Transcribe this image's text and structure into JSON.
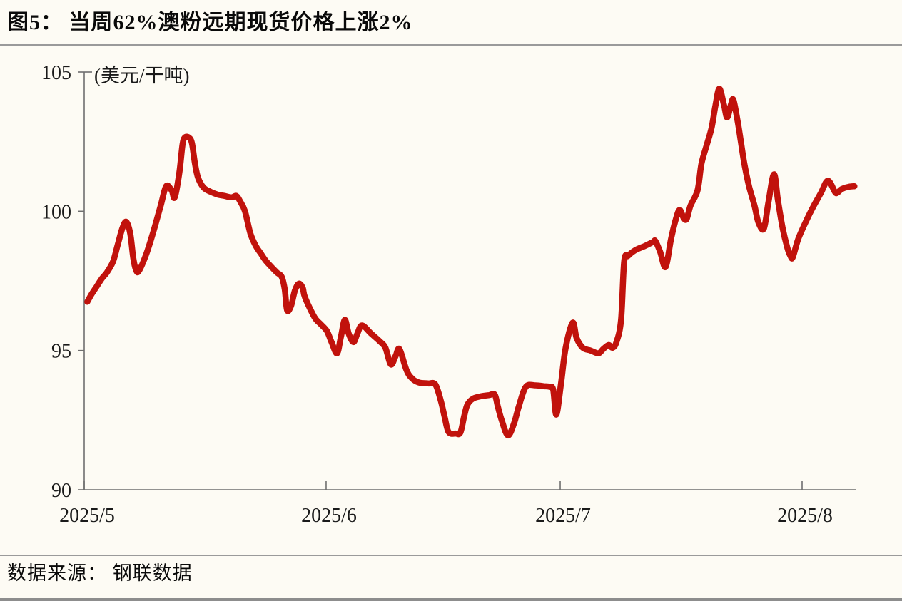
{
  "page": {
    "title": "图5： 当周62%澳粉远期现货价格上涨2%",
    "source": "数据来源： 钢联数据"
  },
  "chart_data": {
    "type": "line",
    "title": "当周62%澳粉远期现货价格上涨2%",
    "series_name": "62%澳粉远期现货价格",
    "ylabel": "(美元/干吨)",
    "line_color": "#c1120c",
    "axis_color": "#6f6f6f",
    "grid": false,
    "legend": "none",
    "x_axis": {
      "unit": "days from 2025-05-01",
      "min": 0,
      "max": 99,
      "ticks": [
        0,
        31,
        61,
        92
      ],
      "tick_labels": [
        "2025/5",
        "2025/6",
        "2025/7",
        "2025/8"
      ]
    },
    "y_axis": {
      "min": 90,
      "max": 105,
      "ticks": [
        90,
        95,
        100,
        105
      ],
      "tick_labels": [
        "90",
        "95",
        "100",
        "105"
      ]
    },
    "points": [
      [
        0.4,
        96.75
      ],
      [
        0.9,
        97.0
      ],
      [
        1.6,
        97.3
      ],
      [
        2.3,
        97.6
      ],
      [
        2.9,
        97.8
      ],
      [
        3.7,
        98.2
      ],
      [
        4.3,
        98.8
      ],
      [
        4.9,
        99.4
      ],
      [
        5.4,
        99.62
      ],
      [
        5.9,
        99.2
      ],
      [
        6.3,
        98.3
      ],
      [
        6.7,
        97.85
      ],
      [
        7.1,
        97.9
      ],
      [
        8.0,
        98.5
      ],
      [
        8.9,
        99.3
      ],
      [
        9.8,
        100.2
      ],
      [
        10.5,
        100.9
      ],
      [
        11.2,
        100.75
      ],
      [
        11.6,
        100.5
      ],
      [
        12.2,
        101.4
      ],
      [
        12.6,
        102.4
      ],
      [
        12.9,
        102.65
      ],
      [
        13.4,
        102.65
      ],
      [
        13.8,
        102.45
      ],
      [
        14.2,
        101.7
      ],
      [
        14.6,
        101.2
      ],
      [
        15.3,
        100.85
      ],
      [
        16.2,
        100.7
      ],
      [
        17.1,
        100.6
      ],
      [
        18.0,
        100.55
      ],
      [
        18.9,
        100.5
      ],
      [
        19.5,
        100.55
      ],
      [
        20.0,
        100.35
      ],
      [
        20.6,
        100.0
      ],
      [
        21.3,
        99.2
      ],
      [
        22.0,
        98.75
      ],
      [
        22.6,
        98.5
      ],
      [
        23.2,
        98.25
      ],
      [
        24.0,
        98.0
      ],
      [
        24.7,
        97.8
      ],
      [
        25.3,
        97.65
      ],
      [
        25.7,
        97.2
      ],
      [
        26.0,
        96.45
      ],
      [
        26.5,
        96.6
      ],
      [
        27.0,
        97.15
      ],
      [
        27.5,
        97.4
      ],
      [
        28.0,
        97.25
      ],
      [
        28.3,
        96.9
      ],
      [
        29.5,
        96.2
      ],
      [
        30.3,
        95.95
      ],
      [
        31.1,
        95.7
      ],
      [
        31.7,
        95.3
      ],
      [
        32.4,
        94.9
      ],
      [
        32.9,
        95.5
      ],
      [
        33.4,
        96.1
      ],
      [
        33.9,
        95.6
      ],
      [
        34.5,
        95.3
      ],
      [
        35.0,
        95.6
      ],
      [
        35.6,
        95.9
      ],
      [
        36.8,
        95.6
      ],
      [
        38.0,
        95.3
      ],
      [
        38.6,
        95.1
      ],
      [
        39.3,
        94.5
      ],
      [
        39.9,
        94.8
      ],
      [
        40.4,
        95.05
      ],
      [
        41.3,
        94.3
      ],
      [
        42.0,
        94.0
      ],
      [
        42.9,
        93.85
      ],
      [
        44.1,
        93.82
      ],
      [
        45.0,
        93.78
      ],
      [
        45.7,
        93.2
      ],
      [
        46.2,
        92.6
      ],
      [
        46.7,
        92.07
      ],
      [
        47.6,
        92.02
      ],
      [
        48.2,
        92.05
      ],
      [
        48.7,
        92.65
      ],
      [
        49.1,
        93.05
      ],
      [
        49.8,
        93.27
      ],
      [
        50.7,
        93.35
      ],
      [
        51.9,
        93.4
      ],
      [
        52.6,
        93.42
      ],
      [
        53.0,
        93.0
      ],
      [
        53.5,
        92.5
      ],
      [
        54.3,
        91.95
      ],
      [
        55.1,
        92.4
      ],
      [
        55.7,
        93.0
      ],
      [
        56.6,
        93.7
      ],
      [
        57.8,
        93.75
      ],
      [
        58.9,
        93.72
      ],
      [
        59.6,
        93.7
      ],
      [
        60.1,
        93.6
      ],
      [
        60.5,
        92.7
      ],
      [
        61.1,
        93.8
      ],
      [
        61.7,
        95.1
      ],
      [
        62.6,
        96.0
      ],
      [
        63.1,
        95.45
      ],
      [
        63.9,
        95.1
      ],
      [
        64.9,
        95.0
      ],
      [
        65.9,
        94.9
      ],
      [
        66.5,
        95.05
      ],
      [
        67.2,
        95.2
      ],
      [
        67.7,
        95.1
      ],
      [
        68.2,
        95.3
      ],
      [
        68.8,
        96.1
      ],
      [
        69.2,
        98.2
      ],
      [
        69.7,
        98.4
      ],
      [
        70.6,
        98.6
      ],
      [
        71.8,
        98.75
      ],
      [
        72.9,
        98.9
      ],
      [
        73.2,
        98.93
      ],
      [
        73.8,
        98.55
      ],
      [
        74.5,
        98.0
      ],
      [
        75.2,
        99.0
      ],
      [
        75.8,
        99.7
      ],
      [
        76.3,
        100.05
      ],
      [
        76.8,
        99.77
      ],
      [
        77.2,
        99.72
      ],
      [
        77.7,
        100.2
      ],
      [
        78.6,
        100.75
      ],
      [
        79.1,
        101.7
      ],
      [
        79.8,
        102.4
      ],
      [
        80.4,
        103.0
      ],
      [
        80.9,
        103.8
      ],
      [
        81.4,
        104.4
      ],
      [
        82.0,
        103.8
      ],
      [
        82.4,
        103.37
      ],
      [
        82.9,
        103.85
      ],
      [
        83.2,
        104.0
      ],
      [
        83.7,
        103.3
      ],
      [
        84.1,
        102.6
      ],
      [
        84.6,
        101.7
      ],
      [
        85.2,
        100.9
      ],
      [
        85.9,
        100.2
      ],
      [
        86.4,
        99.6
      ],
      [
        87.1,
        99.38
      ],
      [
        87.7,
        100.35
      ],
      [
        88.4,
        101.33
      ],
      [
        88.9,
        100.4
      ],
      [
        89.5,
        99.4
      ],
      [
        90.1,
        98.7
      ],
      [
        90.5,
        98.4
      ],
      [
        90.8,
        98.35
      ],
      [
        91.5,
        99.0
      ],
      [
        92.6,
        99.7
      ],
      [
        93.5,
        100.2
      ],
      [
        94.4,
        100.65
      ],
      [
        95.3,
        101.1
      ],
      [
        96.2,
        100.7
      ],
      [
        96.5,
        100.66
      ],
      [
        97.1,
        100.8
      ],
      [
        98.0,
        100.88
      ],
      [
        98.7,
        100.9
      ]
    ]
  },
  "colors": {
    "background": "#fdfbf4",
    "line": "#c1120c",
    "axis": "#6f6f6f",
    "text": "#1a1a1a",
    "rule": "#9a9a9a"
  }
}
